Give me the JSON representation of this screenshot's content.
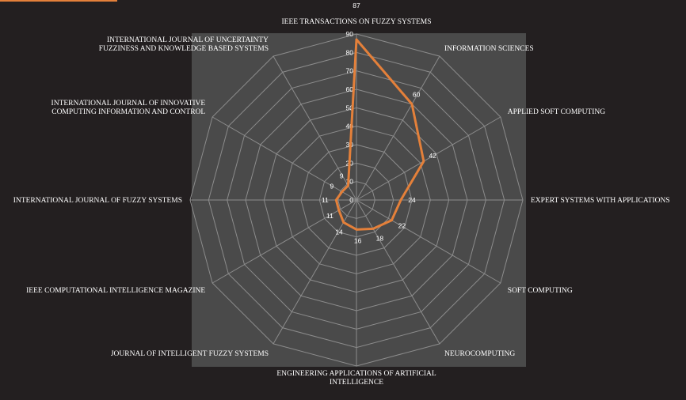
{
  "chart_data": {
    "type": "radar",
    "categories": [
      "IEEE TRANSACTIONS ON FUZZY SYSTEMS",
      "INFORMATION SCIENCES",
      "APPLIED SOFT COMPUTING",
      "EXPERT SYSTEMS WITH APPLICATIONS",
      "SOFT COMPUTING",
      "NEUROCOMPUTING",
      "ENGINEERING APPLICATIONS OF ARTIFICIAL INTELLIGENCE",
      "JOURNAL OF INTELLIGENT FUZZY SYSTEMS",
      "IEEE COMPUTATIONAL INTELLIGENCE MAGAZINE",
      "INTERNATIONAL JOURNAL OF FUZZY SYSTEMS",
      "INTERNATIONAL JOURNAL OF INNOVATIVE COMPUTING INFORMATION AND CONTROL",
      "INTERNATIONAL JOURNAL OF UNCERTAINTY FUZZINESS AND KNOWLEDGE BASED SYSTEMS"
    ],
    "label_lines": [
      [
        "IEEE TRANSACTIONS ON FUZZY SYSTEMS"
      ],
      [
        "INFORMATION SCIENCES"
      ],
      [
        "APPLIED SOFT COMPUTING"
      ],
      [
        "EXPERT SYSTEMS WITH APPLICATIONS"
      ],
      [
        "SOFT COMPUTING"
      ],
      [
        "NEUROCOMPUTING"
      ],
      [
        "ENGINEERING APPLICATIONS OF ARTIFICIAL",
        "INTELLIGENCE"
      ],
      [
        "JOURNAL OF INTELLIGENT FUZZY SYSTEMS"
      ],
      [
        "IEEE COMPUTATIONAL INTELLIGENCE MAGAZINE"
      ],
      [
        "INTERNATIONAL JOURNAL OF FUZZY SYSTEMS"
      ],
      [
        "INTERNATIONAL JOURNAL OF INNOVATIVE",
        "COMPUTING INFORMATION AND CONTROL"
      ],
      [
        "INTERNATIONAL JOURNAL OF UNCERTAINTY",
        "FUZZINESS AND KNOWLEDGE BASED SYSTEMS"
      ]
    ],
    "values": [
      87,
      60,
      42,
      24,
      22,
      18,
      16,
      14,
      11,
      11,
      9,
      9
    ],
    "value_labels": [
      "87",
      "60",
      "42",
      "24",
      "22",
      "18",
      "16",
      "14",
      "11",
      "11",
      "9",
      "9"
    ],
    "ticks": [
      "0",
      "10",
      "20",
      "30",
      "40",
      "50",
      "60",
      "70",
      "80",
      "90"
    ],
    "rmax": 90,
    "colors": {
      "background": "#231f20",
      "plot_area": "#4a4a4a",
      "grid": "#8c8c8c",
      "series": "#e4803a",
      "text": "#ffffff"
    }
  }
}
